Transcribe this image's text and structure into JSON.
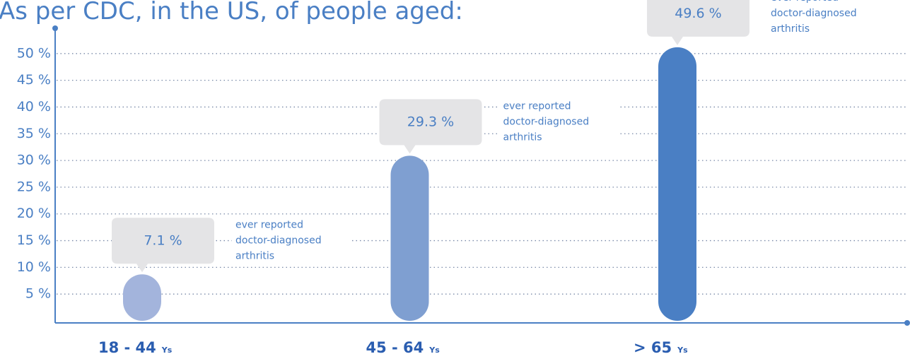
{
  "chart_data": {
    "type": "bar",
    "title": "As per CDC, in the US, of people aged:",
    "categories": [
      "18 - 44",
      "45 - 64",
      "> 65"
    ],
    "category_unit": "Ys",
    "values": [
      7.1,
      29.3,
      49.6
    ],
    "value_labels": [
      "7.1 %",
      "29.3 %",
      "49.6 %"
    ],
    "colors": [
      "#a3b4dc",
      "#7f9fd1",
      "#4a7fc4"
    ],
    "annotations": [
      [
        "ever reported",
        "doctor-diagnosed",
        "arthritis"
      ],
      [
        "ever reported",
        "doctor-diagnosed",
        "arthritis"
      ],
      [
        "ever reported",
        "doctor-diagnosed",
        "arthritis"
      ]
    ],
    "ylim": [
      0,
      55
    ],
    "yticks": [
      {
        "value": 5,
        "label": "5 %"
      },
      {
        "value": 10,
        "label": "10 %"
      },
      {
        "value": 15,
        "label": "15 %"
      },
      {
        "value": 20,
        "label": "20 %"
      },
      {
        "value": 25,
        "label": "25 %"
      },
      {
        "value": 30,
        "label": "30 %"
      },
      {
        "value": 35,
        "label": "35 %"
      },
      {
        "value": 40,
        "label": "40 %"
      },
      {
        "value": 45,
        "label": "45 %"
      },
      {
        "value": 50,
        "label": "50 %"
      }
    ],
    "grid": true
  }
}
